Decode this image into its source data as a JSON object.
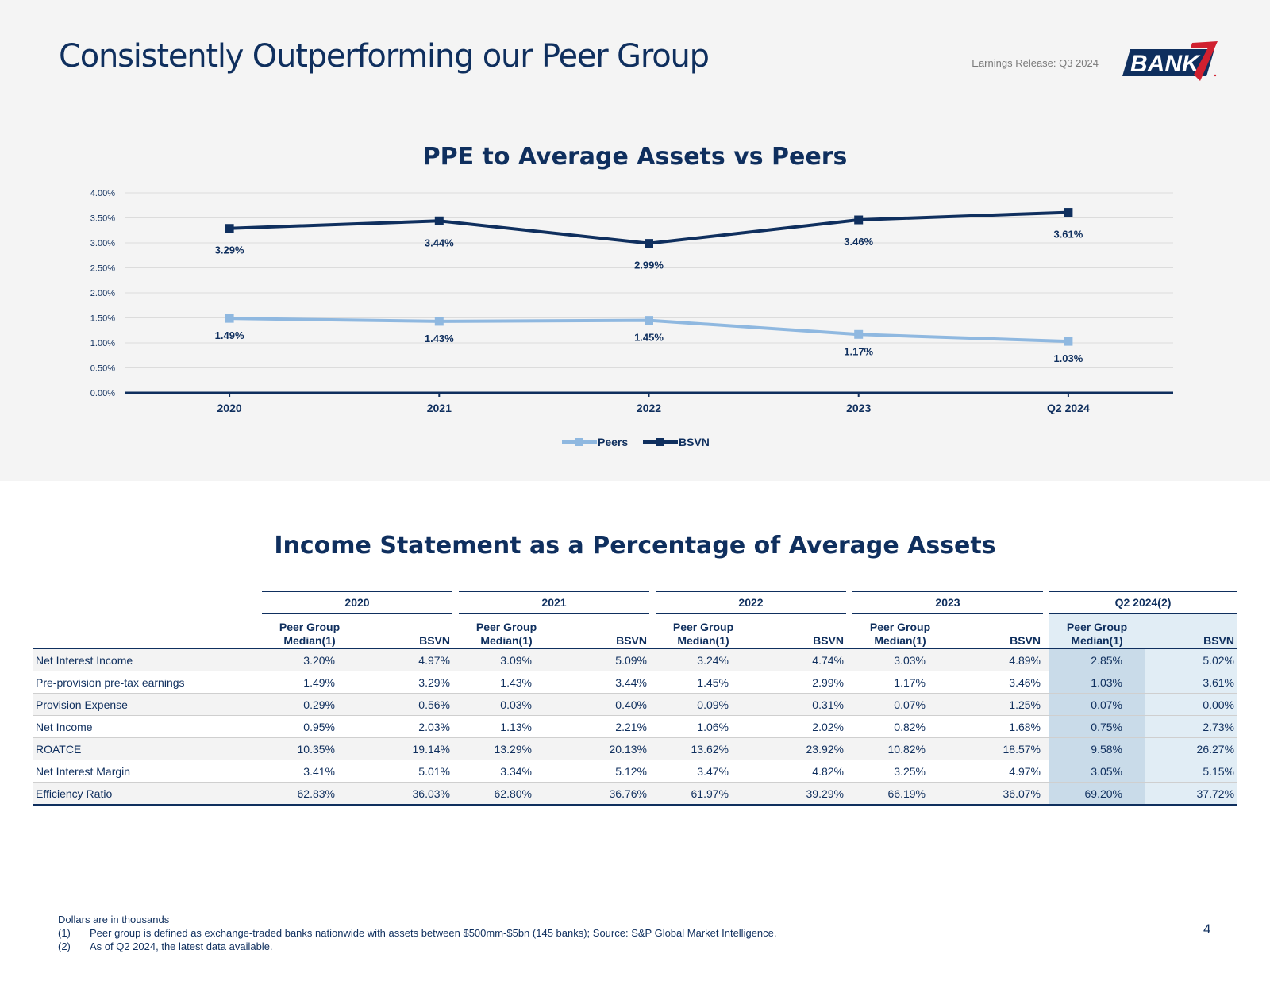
{
  "header": {
    "title": "Consistently Outperforming our Peer Group",
    "release": "Earnings Release: Q3 2024",
    "logo_text": "BANK",
    "logo_numeral": "7"
  },
  "colors": {
    "navy": "#0f2f5e",
    "light_blue": "#8fb8e0",
    "q2_peer_fill": "#c9dbe9",
    "q2_bsvn_fill": "#e1edf5",
    "panel": "#f4f4f4",
    "logo_red": "#d0202f"
  },
  "chart_data": {
    "type": "line",
    "title": "PPE to Average Assets vs Peers",
    "categories": [
      "2020",
      "2021",
      "2022",
      "2023",
      "Q2 2024"
    ],
    "series": [
      {
        "name": "Peers",
        "values": [
          1.49,
          1.43,
          1.45,
          1.17,
          1.03
        ],
        "labels": [
          "1.49%",
          "1.43%",
          "1.45%",
          "1.17%",
          "1.03%"
        ],
        "color": "#8fb8e0"
      },
      {
        "name": "BSVN",
        "values": [
          3.29,
          3.44,
          2.99,
          3.46,
          3.61
        ],
        "labels": [
          "3.29%",
          "3.44%",
          "2.99%",
          "3.46%",
          "3.61%"
        ],
        "color": "#0f2f5e"
      }
    ],
    "ylim": [
      0,
      4
    ],
    "yticks": [
      "0.00%",
      "0.50%",
      "1.00%",
      "1.50%",
      "2.00%",
      "2.50%",
      "3.00%",
      "3.50%",
      "4.00%"
    ],
    "grid": true,
    "legend": "bottom-center"
  },
  "table": {
    "title": "Income Statement as a Percentage of Average Assets",
    "years": [
      "2020",
      "2021",
      "2022",
      "2023",
      "Q2 2024(2)"
    ],
    "peer_header_line1": "Peer Group",
    "peer_header_line2": "Median(1)",
    "bsvn_header": "BSVN",
    "rows": [
      {
        "label": "Net Interest Income",
        "values": [
          "3.20%",
          "4.97%",
          "3.09%",
          "5.09%",
          "3.24%",
          "4.74%",
          "3.03%",
          "4.89%",
          "2.85%",
          "5.02%"
        ]
      },
      {
        "label": "Pre-provision pre-tax earnings",
        "values": [
          "1.49%",
          "3.29%",
          "1.43%",
          "3.44%",
          "1.45%",
          "2.99%",
          "1.17%",
          "3.46%",
          "1.03%",
          "3.61%"
        ]
      },
      {
        "label": "Provision Expense",
        "values": [
          "0.29%",
          "0.56%",
          "0.03%",
          "0.40%",
          "0.09%",
          "0.31%",
          "0.07%",
          "1.25%",
          "0.07%",
          "0.00%"
        ]
      },
      {
        "label": "Net Income",
        "values": [
          "0.95%",
          "2.03%",
          "1.13%",
          "2.21%",
          "1.06%",
          "2.02%",
          "0.82%",
          "1.68%",
          "0.75%",
          "2.73%"
        ]
      },
      {
        "label": "ROATCE",
        "values": [
          "10.35%",
          "19.14%",
          "13.29%",
          "20.13%",
          "13.62%",
          "23.92%",
          "10.82%",
          "18.57%",
          "9.58%",
          "26.27%"
        ]
      },
      {
        "label": "Net Interest Margin",
        "values": [
          "3.41%",
          "5.01%",
          "3.34%",
          "5.12%",
          "3.47%",
          "4.82%",
          "3.25%",
          "4.97%",
          "3.05%",
          "5.15%"
        ]
      },
      {
        "label": "Efficiency Ratio",
        "values": [
          "62.83%",
          "36.03%",
          "62.80%",
          "36.76%",
          "61.97%",
          "39.29%",
          "66.19%",
          "36.07%",
          "69.20%",
          "37.72%"
        ]
      }
    ]
  },
  "footnotes": {
    "intro": "Dollars are in thousands",
    "items": [
      {
        "num": "(1)",
        "text": "Peer group is defined as exchange-traded banks nationwide with assets between $500mm-$5bn (145 banks); Source: S&P Global Market Intelligence."
      },
      {
        "num": "(2)",
        "text": "As of Q2 2024, the latest data available."
      }
    ]
  },
  "page_number": "4"
}
